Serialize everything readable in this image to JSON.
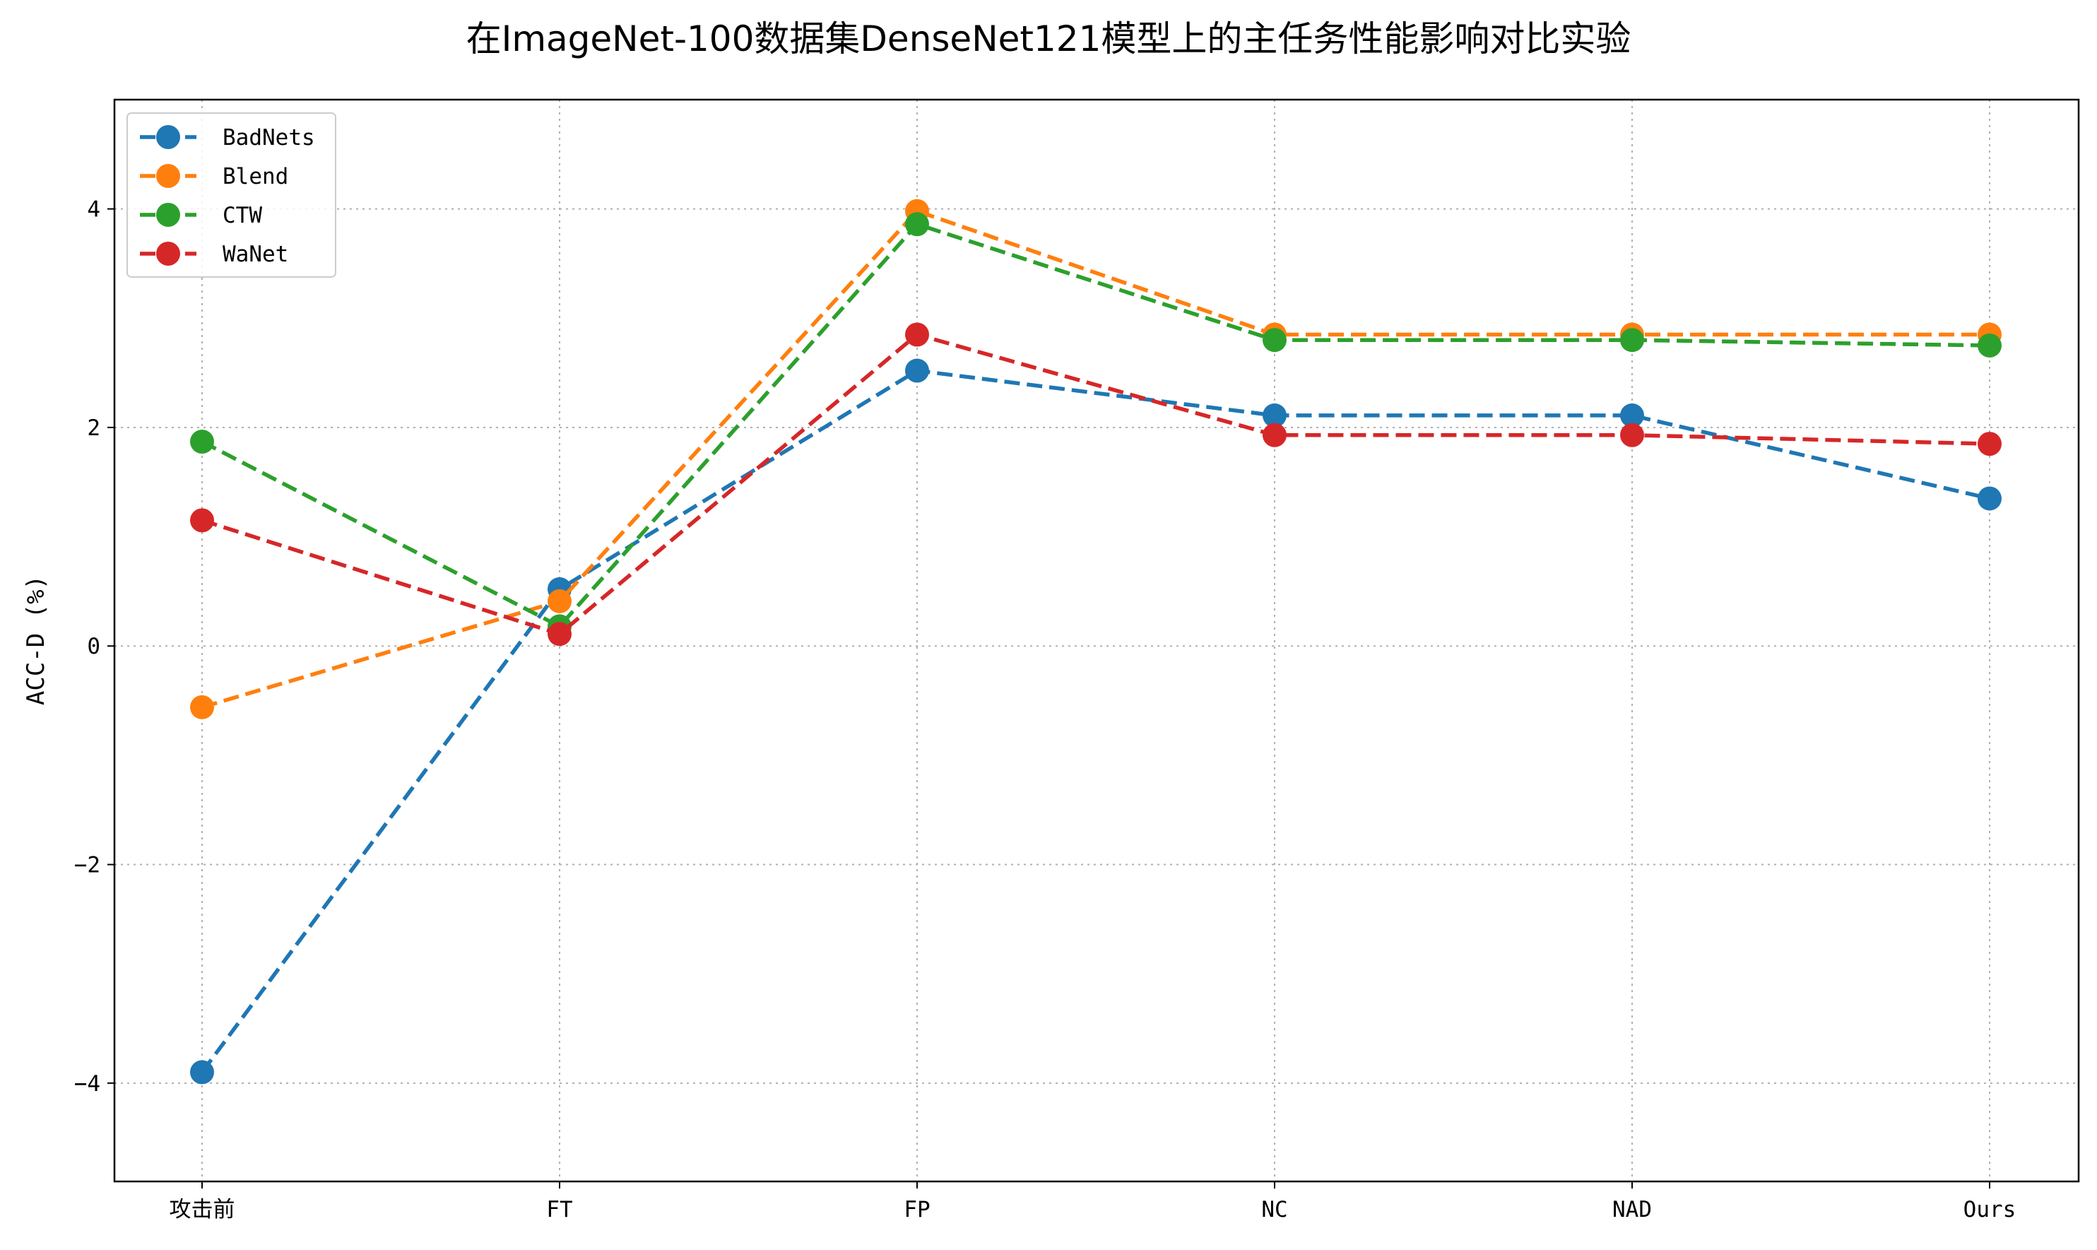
{
  "chart_data": {
    "type": "line",
    "title": "在ImageNet-100数据集DenseNet121模型上的主任务性能影响对比实验",
    "xlabel": "",
    "ylabel": "ACC-D (%)",
    "categories": [
      "攻击前",
      "FT",
      "FP",
      "NC",
      "NAD",
      "Ours"
    ],
    "ylim": [
      -4.9,
      5.0
    ],
    "yticks": [
      -4,
      -2,
      0,
      2,
      4
    ],
    "grid": true,
    "line_style": "dashed",
    "marker": "circle",
    "legend_position": "top-left",
    "series": [
      {
        "name": "BadNets",
        "color": "#1f77b4",
        "values": [
          -3.9,
          0.52,
          2.52,
          2.11,
          2.11,
          1.35
        ]
      },
      {
        "name": "Blend",
        "color": "#ff7f0e",
        "values": [
          -0.56,
          0.41,
          3.98,
          2.85,
          2.85,
          2.85
        ]
      },
      {
        "name": "CTW",
        "color": "#2ca02c",
        "values": [
          1.87,
          0.18,
          3.86,
          2.8,
          2.8,
          2.75
        ]
      },
      {
        "name": "WaNet",
        "color": "#d62728",
        "values": [
          1.15,
          0.11,
          2.85,
          1.93,
          1.93,
          1.85
        ]
      }
    ]
  }
}
